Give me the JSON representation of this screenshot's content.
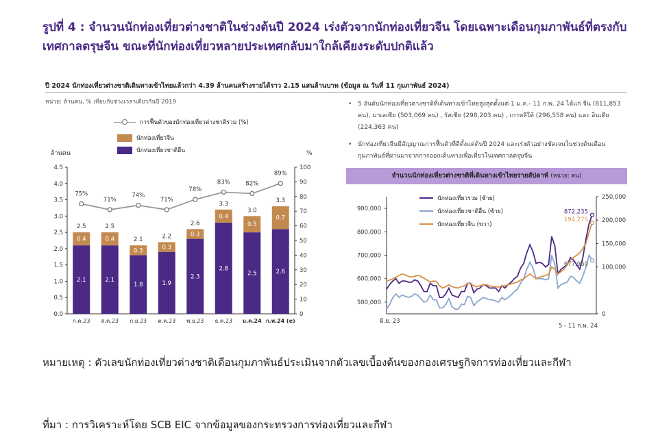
{
  "figure_title": "รูปที่ 4 : จำนวนนักท่องเที่ยวต่างชาติในช่วงต้นปี 2024 เร่งตัวจากนักท่องเที่ยวจีน โดยเฉพาะเดือนกุมภาพันธ์ที่ตรงกับเทศกาลตรุษจีน ขณะที่นักท่องเที่ยวหลายประเทศกลับมาใกล้เคียงระดับปกติแล้ว",
  "panel_title": "ปี 2024 นักท่องเที่ยวต่างชาติเดินทางเข้าไทยแล้วกว่า 4.39 ล้านคนสร้างรายได้ราว 2.15 แสนล้านบาท (ข้อมูล ณ วันที่ 11 กุมภาพันธ์ 2024)",
  "unit_note": "หน่วย:  ล้านคน, % เทียบกับช่วงเวลาเดียวกันปี 2019",
  "bullets": [
    "5 อันดับนักท่องเที่ยวต่างชาติที่เดินทางเข้าไทยสูงสุดตั้งแต่ 1 ม.ค.- 11 ก.พ. 24 ได้แก่ จีน (811,853 คน), มาเลเซีย (503,069 คน) , รัสเซีย (298,203 คน) , เกาหลีใต้ (296,558 คน)  และ อินเดีย (224,363 คน)",
    "นักท่องเที่ยวจีนมีสัญญาณการฟื้นตัวที่ดีตั้งแต่ต้นปี 2024 และเร่งตัวอย่างชัดเจนในช่วงต้นเดือนกุมภาพันธ์ที่ผ่านมาจากการออกเดินทางเพื่อเที่ยวในเทศกาลตรุษจีน"
  ],
  "weekly_header": "จำนวนนักท่องเที่ยวต่างชาติที่เดินทางเข้าไทยรายสัปดาห์",
  "weekly_header_unit": "(หน่วย: คน)",
  "note_text": "หมายเหตุ : ตัวเลขนักท่องเที่ยวต่างชาติเดือนกุมภาพันธ์ประเมินจากตัวเลขเบื้องต้นของกองเศรษฐกิจการท่องเที่ยวและกีฬา",
  "source_text": "ที่มา : การวิเคราะห์โดย SCB EIC จากข้อมูลของกระทรวงการท่องเที่ยวและกีฬา",
  "colors": {
    "title": "#4b2c86",
    "other": "#4a2a85",
    "china": "#c38a50",
    "recovery_line": "#999999",
    "total": "#4a2a85",
    "others_line": "#8aa6cc",
    "china_line": "#d89048",
    "header_bg": "#b79ad8"
  },
  "chart_data": [
    {
      "type": "bar",
      "stacked": true,
      "categories": [
        "ก.ค.23",
        "ส.ค.23",
        "ก.ย.23",
        "ต.ค.23",
        "พ.ย.23",
        "ธ.ค.23",
        "ม.ค.24",
        "ก.พ.24 (e)"
      ],
      "bold_categories": [
        "ม.ค.24",
        "ก.พ.24 (e)"
      ],
      "series": [
        {
          "name": "นักท่องเที่ยวชาติอื่น",
          "values": [
            2.1,
            2.1,
            1.8,
            1.9,
            2.3,
            2.8,
            2.5,
            2.6
          ]
        },
        {
          "name": "นักท่องเที่ยวจีน",
          "values": [
            0.4,
            0.4,
            0.3,
            0.3,
            0.3,
            0.4,
            0.5,
            0.7
          ]
        }
      ],
      "totals": [
        2.5,
        2.5,
        2.1,
        2.2,
        2.6,
        3.3,
        3.0,
        3.3
      ],
      "line_series": {
        "name": "การฟื้นตัวของนักท่องเที่ยวต่างชาติรวม (%)",
        "values": [
          75,
          71,
          74,
          71,
          78,
          83,
          82,
          89
        ],
        "labels": [
          "75%",
          "71%",
          "74%",
          "71%",
          "78%",
          "83%",
          "82%",
          "89%"
        ]
      },
      "ylabel_left": "ล้านคน",
      "ylabel_right": "%",
      "ylim_left": [
        0,
        4.5
      ],
      "yticks_left": [
        "0.0",
        "0.5",
        "1.0",
        "1.5",
        "2.0",
        "2.5",
        "3.0",
        "3.5",
        "4.0",
        "4.5"
      ],
      "ylim_right": [
        0,
        100
      ],
      "yticks_right": [
        "0",
        "10",
        "20",
        "30",
        "40",
        "50",
        "60",
        "70",
        "80",
        "90",
        "100"
      ],
      "legend": [
        "การฟื้นตัวของนักท่องเที่ยวต่างชาติรวม (%)",
        "นักท่องเที่ยวจีน",
        "นักท่องเที่ยวชาติอื่น"
      ]
    },
    {
      "type": "line",
      "x_labels": [
        "มิ.ย. 23",
        "5 - 11 ก.พ. 24"
      ],
      "series": [
        {
          "name": "นักท่องเที่ยวรวม (ซ้าย)",
          "axis": "left",
          "values": [
            555000,
            575000,
            590000,
            600000,
            580000,
            590000,
            590000,
            585000,
            585000,
            595000,
            590000,
            570000,
            545000,
            545000,
            580000,
            570000,
            570000,
            520000,
            520000,
            535000,
            560000,
            530000,
            525000,
            520000,
            545000,
            545000,
            580000,
            580000,
            540000,
            555000,
            560000,
            575000,
            570000,
            560000,
            560000,
            560000,
            545000,
            570000,
            560000,
            575000,
            585000,
            600000,
            610000,
            645000,
            665000,
            710000,
            745000,
            715000,
            665000,
            670000,
            665000,
            650000,
            660000,
            780000,
            740000,
            620000,
            640000,
            650000,
            660000,
            690000,
            680000,
            660000,
            640000,
            690000,
            770000,
            835000,
            872235
          ]
        },
        {
          "name": "นักท่องเที่ยวชาติอื่น (ซ้าย)",
          "axis": "left",
          "values": [
            470000,
            490000,
            520000,
            535000,
            520000,
            530000,
            525000,
            520000,
            525000,
            535000,
            530000,
            515000,
            500000,
            505000,
            530000,
            510000,
            510000,
            475000,
            475000,
            490000,
            515000,
            480000,
            470000,
            470000,
            490000,
            490000,
            525000,
            520000,
            485000,
            500000,
            510000,
            520000,
            515000,
            510000,
            510000,
            505000,
            500000,
            520000,
            510000,
            520000,
            530000,
            545000,
            555000,
            580000,
            600000,
            640000,
            670000,
            645000,
            600000,
            600000,
            600000,
            595000,
            600000,
            700000,
            660000,
            560000,
            575000,
            580000,
            585000,
            610000,
            605000,
            590000,
            580000,
            610000,
            650000,
            700000,
            677960
          ]
        },
        {
          "name": "นักท่องเที่ยวจีน (ขวา)",
          "axis": "right",
          "values": [
            70000,
            72000,
            75000,
            78000,
            82000,
            85000,
            83000,
            80000,
            78000,
            80000,
            82000,
            80000,
            76000,
            72000,
            68000,
            70000,
            69000,
            60000,
            55000,
            58000,
            62000,
            58000,
            56000,
            55000,
            58000,
            60000,
            65000,
            64000,
            60000,
            58000,
            60000,
            62000,
            62000,
            60000,
            58000,
            58000,
            57000,
            59000,
            60000,
            62000,
            64000,
            66000,
            68000,
            72000,
            75000,
            80000,
            85000,
            80000,
            75000,
            78000,
            80000,
            82000,
            84000,
            100000,
            95000,
            85000,
            90000,
            95000,
            105000,
            115000,
            120000,
            125000,
            130000,
            140000,
            150000,
            175000,
            194275
          ]
        }
      ],
      "end_labels": [
        "872,235",
        "194,275",
        "677,960"
      ],
      "ylim_left": [
        450000,
        950000
      ],
      "yticks_left": [
        "500,000",
        "600,000",
        "700,000",
        "800,000",
        "900,000"
      ],
      "ylim_right": [
        0,
        250000
      ],
      "yticks_right": [
        "0",
        "100,000",
        "150,000",
        "200,000",
        "250,000"
      ]
    }
  ]
}
